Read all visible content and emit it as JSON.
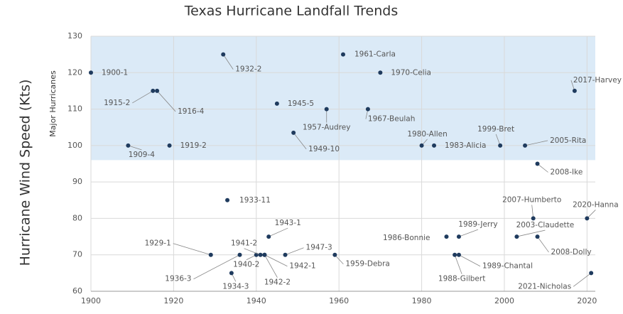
{
  "chart_data": {
    "type": "scatter",
    "title": "Texas Hurricane Landfall Trends",
    "y_label": "Hurricane Wind Speed (Kts)",
    "shaded_region": {
      "label": "Major Hurricanes",
      "ylim": [
        96,
        130
      ],
      "color": "#dbeaf7"
    },
    "color": "#1f3b5e",
    "grid": true,
    "xlim": [
      1900,
      2022
    ],
    "xticks": [
      1900,
      1920,
      1940,
      1960,
      1980,
      2000,
      2020
    ],
    "ylim": [
      60,
      130
    ],
    "yticks": [
      60,
      70,
      80,
      90,
      100,
      110,
      120,
      130
    ],
    "point_labels": [
      "1900-1",
      "1932-2",
      "1961-Carla",
      "1970-Celia",
      "2017-Harvey",
      "1915-2",
      "1916-4",
      "1945-5",
      "1957-Audrey",
      "1967-Beulah",
      "1949-10",
      "1909-4",
      "1919-2",
      "1980-Allen",
      "1983-Alicia",
      "1999-Bret",
      "2005-Rita",
      "2008-Ike",
      "1933-11",
      "2007-Humberto",
      "2020-Hanna",
      "1943-1",
      "1986-Bonnie",
      "1989-Jerry",
      "2003-Claudette",
      "2008-Dolly",
      "1929-1",
      "1936-3",
      "1940-2",
      "1941-2",
      "1942-1",
      "1942-2",
      "1947-3",
      "1959-Debra",
      "1988-Gilbert",
      "1989-Chantal",
      "1934-3",
      "2021-Nicholas"
    ],
    "x": [
      1900,
      1932,
      1961,
      1970,
      2017,
      1915,
      1916,
      1945,
      1957,
      1967,
      1949,
      1909,
      1919,
      1980,
      1983,
      1999,
      2005,
      2008,
      1933,
      2007,
      2020,
      1943,
      1986,
      1989,
      2003,
      2008,
      1929,
      1936,
      1940,
      1941,
      1942,
      1942,
      1947,
      1959,
      1988,
      1989,
      1934,
      2021
    ],
    "values": [
      120,
      125,
      125,
      120,
      115,
      115,
      115,
      111.5,
      110,
      110,
      103.5,
      100,
      100,
      100,
      100,
      100,
      100,
      95,
      85,
      80,
      80,
      75,
      75,
      75,
      75,
      75,
      70,
      70,
      70,
      70,
      70,
      70,
      70,
      70,
      70,
      70,
      65,
      65
    ]
  }
}
